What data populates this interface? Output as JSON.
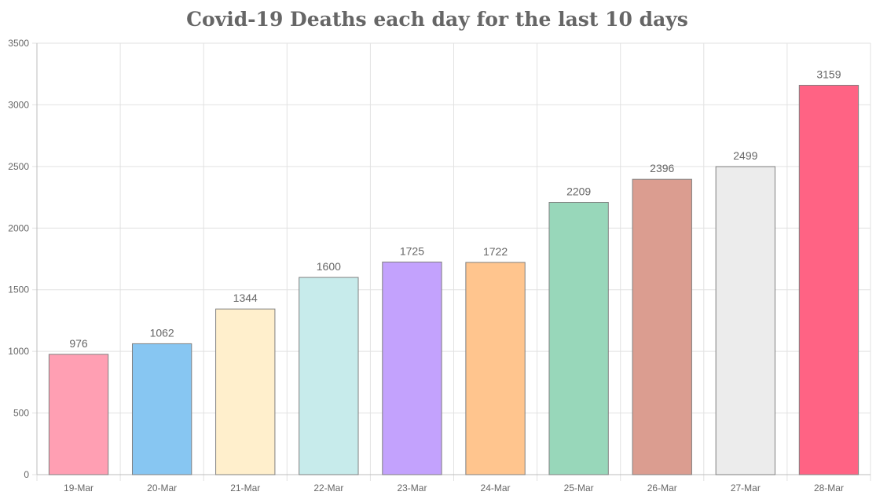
{
  "chart_data": {
    "type": "bar",
    "title": "Covid-19 Deaths each day for the last 10 days",
    "xlabel": "",
    "ylabel": "",
    "categories": [
      "19-Mar",
      "20-Mar",
      "21-Mar",
      "22-Mar",
      "23-Mar",
      "24-Mar",
      "25-Mar",
      "26-Mar",
      "27-Mar",
      "28-Mar"
    ],
    "values": [
      976,
      1062,
      1344,
      1600,
      1725,
      1722,
      2209,
      2396,
      2499,
      3159
    ],
    "data_labels": [
      "976",
      "1062",
      "1344",
      "1600",
      "1725",
      "1722",
      "2209",
      "2396",
      "2499",
      "3159"
    ],
    "ylim": [
      0,
      3500
    ],
    "yticks": [
      0,
      500,
      1000,
      1500,
      2000,
      2500,
      3000,
      3500
    ],
    "ytick_labels": [
      "0",
      "500",
      "1000",
      "1500",
      "2000",
      "2500",
      "3000",
      "3500"
    ],
    "grid": true,
    "legend": "none",
    "bar_colors": [
      "#ff9fb3",
      "#87c6f2",
      "#ffefcc",
      "#c7ebeb",
      "#c3a2fd",
      "#ffc58e",
      "#98d7ba",
      "#db9d90",
      "#ececec",
      "#ff6384"
    ]
  }
}
